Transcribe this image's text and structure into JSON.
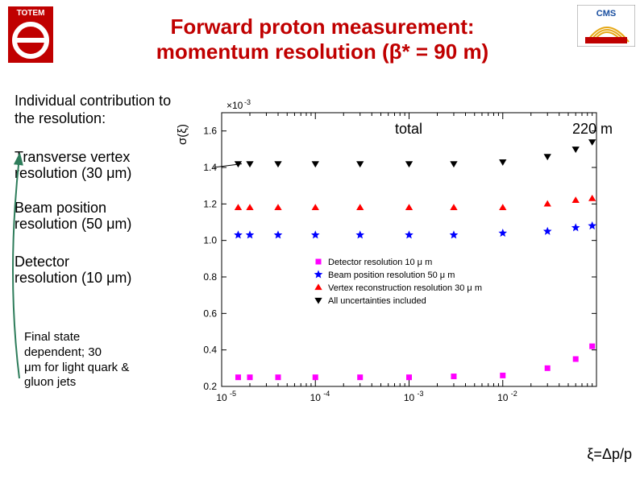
{
  "title_l1": "Forward proton measurement:",
  "title_l2_a": "momentum resolution (",
  "title_l2_b": "β",
  "title_l2_c": "* = 90 m)",
  "left": {
    "intro": "Individual contribution to the resolution:",
    "tv1": "Transverse vertex",
    "tv2": "resolution (30 μm)",
    "bp1": "Beam position",
    "bp2": "resolution (50 μm)",
    "dr1": "Detector",
    "dr2": "resolution (10 μm)",
    "fs1": "Final state",
    "fs2": "dependent;       30",
    "fs3": "μm for light quark &",
    "fs4": "gluon jets"
  },
  "sigma": "σ(ξ)",
  "annot_total": "total",
  "annot_right": "220 m",
  "xlabel": "ξ=Δp/p",
  "legend": {
    "l1": "Detector resolution 10 μ m",
    "l2": "Beam position resolution 50 μ m",
    "l3": "Vertex reconstruction resolution 30 μ m",
    "l4": "All uncertainties included"
  },
  "chart": {
    "type": "scatter",
    "x_log": true,
    "xlim": [
      1e-05,
      0.1
    ],
    "ylim": [
      0.2,
      1.7
    ],
    "y_exp": "×10^{-3}",
    "yticks": [
      0.2,
      0.4,
      0.6,
      0.8,
      1.0,
      1.2,
      1.4,
      1.6
    ],
    "xticks": [
      1e-05,
      0.0001,
      0.001,
      0.01
    ],
    "xticklabels": [
      "10^{-5}",
      "10^{-4}",
      "10^{-3}",
      "10^{-2}"
    ],
    "bg": "#ffffff",
    "axis": "#000000",
    "grid": "#000000",
    "series": [
      {
        "name": "detector",
        "marker": "square",
        "color": "#ff00ff",
        "size": 7,
        "x": [
          1.5e-05,
          2e-05,
          4e-05,
          0.0001,
          0.0003,
          0.001,
          0.003,
          0.01,
          0.03,
          0.06,
          0.09
        ],
        "y": [
          0.25,
          0.25,
          0.25,
          0.25,
          0.25,
          0.25,
          0.255,
          0.26,
          0.3,
          0.35,
          0.42
        ]
      },
      {
        "name": "beam",
        "marker": "star",
        "color": "#0000ff",
        "size": 7,
        "x": [
          1.5e-05,
          2e-05,
          4e-05,
          0.0001,
          0.0003,
          0.001,
          0.003,
          0.01,
          0.03,
          0.06,
          0.09
        ],
        "y": [
          1.03,
          1.03,
          1.03,
          1.03,
          1.03,
          1.03,
          1.03,
          1.04,
          1.05,
          1.07,
          1.08
        ]
      },
      {
        "name": "vertex",
        "marker": "triangle",
        "color": "#ff0000",
        "size": 7,
        "x": [
          1.5e-05,
          2e-05,
          4e-05,
          0.0001,
          0.0003,
          0.001,
          0.003,
          0.01,
          0.03,
          0.06,
          0.09
        ],
        "y": [
          1.18,
          1.18,
          1.18,
          1.18,
          1.18,
          1.18,
          1.18,
          1.18,
          1.2,
          1.22,
          1.23
        ]
      },
      {
        "name": "total",
        "marker": "tdown",
        "color": "#000000",
        "size": 7,
        "x": [
          1.5e-05,
          2e-05,
          4e-05,
          0.0001,
          0.0003,
          0.001,
          0.003,
          0.01,
          0.03,
          0.06,
          0.09
        ],
        "y": [
          1.42,
          1.42,
          1.42,
          1.42,
          1.42,
          1.42,
          1.42,
          1.43,
          1.46,
          1.5,
          1.54
        ]
      }
    ]
  },
  "colors": {
    "title": "#c00000",
    "arrow": "#2e7d5b"
  }
}
